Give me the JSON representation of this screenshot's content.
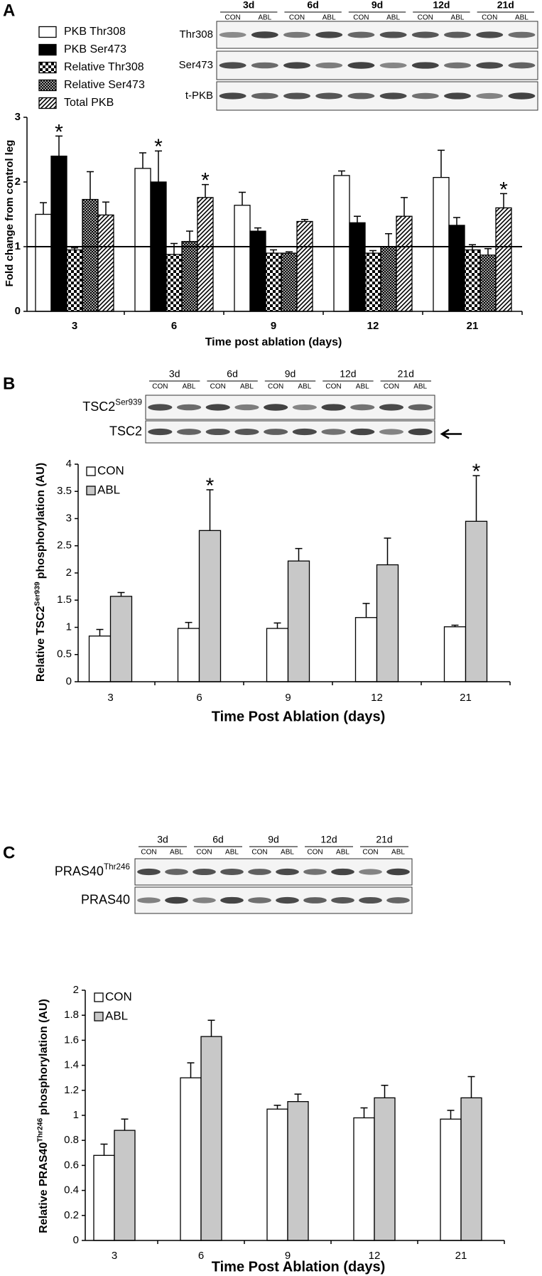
{
  "chart_data": [
    {
      "type": "bar",
      "panel": "A",
      "blot": {
        "days": [
          "3d",
          "6d",
          "9d",
          "12d",
          "21d"
        ],
        "conditions": [
          "CON",
          "ABL"
        ],
        "rows": [
          {
            "label": "Thr308"
          },
          {
            "label": "Ser473"
          },
          {
            "label": "t-PKB"
          }
        ]
      },
      "y_label": {
        "text": "Fold change from control leg"
      },
      "x_label": "Time post ablation (days)",
      "categories": [
        "3",
        "6",
        "9",
        "12",
        "21"
      ],
      "ylim": [
        0,
        3
      ],
      "yticks": [
        0,
        1,
        2,
        3
      ],
      "reference_line": 1,
      "series": [
        {
          "name": "PKB Thr308",
          "color": "#ffffff",
          "pattern": "solid",
          "values": [
            1.5,
            2.21,
            1.64,
            2.1,
            2.07
          ],
          "errors": [
            0.18,
            0.24,
            0.2,
            0.07,
            0.42
          ],
          "markers": [
            null,
            null,
            null,
            null,
            null
          ]
        },
        {
          "name": "PKB Ser473",
          "color": "#000000",
          "pattern": "solid",
          "values": [
            2.4,
            2.0,
            1.24,
            1.37,
            1.33
          ],
          "errors": [
            0.31,
            0.48,
            0.05,
            0.1,
            0.12
          ],
          "markers": [
            "*",
            "*",
            null,
            null,
            null
          ]
        },
        {
          "name": "Relative Thr308",
          "color": "#000000",
          "pattern": "checker",
          "values": [
            0.95,
            0.88,
            0.9,
            0.9,
            0.95
          ],
          "errors": [
            0.03,
            0.17,
            0.05,
            0.04,
            0.08
          ],
          "markers": [
            null,
            null,
            null,
            null,
            null
          ]
        },
        {
          "name": "Relative Ser473",
          "color": "#000000",
          "pattern": "crosshatch",
          "values": [
            1.73,
            1.08,
            0.9,
            1.0,
            0.87
          ],
          "errors": [
            0.43,
            0.16,
            0.02,
            0.2,
            0.1
          ],
          "markers": [
            null,
            null,
            null,
            null,
            null
          ]
        },
        {
          "name": "Total PKB",
          "color": "#000000",
          "pattern": "hatch",
          "values": [
            1.49,
            1.76,
            1.39,
            1.47,
            1.6
          ],
          "errors": [
            0.2,
            0.2,
            0.03,
            0.29,
            0.22
          ],
          "markers": [
            null,
            "*",
            null,
            null,
            "*"
          ]
        }
      ]
    },
    {
      "type": "bar",
      "panel": "B",
      "blot": {
        "days": [
          "3d",
          "6d",
          "9d",
          "12d",
          "21d"
        ],
        "conditions": [
          "CON",
          "ABL"
        ],
        "rows": [
          {
            "label": "TSC2",
            "sup": "Ser939"
          },
          {
            "label": "TSC2"
          }
        ]
      },
      "y_label": {
        "text": "Relative TSC2",
        "sup": "Ser939",
        "rest": "phosphorylation (AU)"
      },
      "x_label": "Time Post Ablation (days)",
      "categories": [
        "3",
        "6",
        "9",
        "12",
        "21"
      ],
      "ylim": [
        0,
        4
      ],
      "yticks": [
        0,
        0.5,
        1,
        1.5,
        2,
        2.5,
        3,
        3.5,
        4
      ],
      "series": [
        {
          "name": "CON",
          "color": "#ffffff",
          "pattern": "solid",
          "values": [
            0.84,
            0.98,
            0.98,
            1.18,
            1.01
          ],
          "errors": [
            0.12,
            0.11,
            0.1,
            0.26,
            0.03
          ],
          "markers": [
            null,
            null,
            null,
            null,
            null
          ]
        },
        {
          "name": "ABL",
          "color": "#c8c8c8",
          "pattern": "solid",
          "values": [
            1.57,
            2.78,
            2.22,
            2.15,
            2.95
          ],
          "errors": [
            0.07,
            0.75,
            0.23,
            0.49,
            0.84
          ],
          "markers": [
            null,
            "*",
            null,
            null,
            "*"
          ]
        }
      ]
    },
    {
      "type": "bar",
      "panel": "C",
      "blot": {
        "days": [
          "3d",
          "6d",
          "9d",
          "12d",
          "21d"
        ],
        "conditions": [
          "CON",
          "ABL"
        ],
        "rows": [
          {
            "label": "PRAS40",
            "sup": "Thr246"
          },
          {
            "label": "PRAS40"
          }
        ]
      },
      "y_label": {
        "text": "Relative PRAS40",
        "sup": "Thr246",
        "rest": "phosphorylation (AU)"
      },
      "x_label": "Time Post Ablation (days)",
      "categories": [
        "3",
        "6",
        "9",
        "12",
        "21"
      ],
      "ylim": [
        0,
        2
      ],
      "yticks": [
        0,
        0.2,
        0.4,
        0.6,
        0.8,
        1,
        1.2,
        1.4,
        1.6,
        1.8,
        2
      ],
      "series": [
        {
          "name": "CON",
          "color": "#ffffff",
          "pattern": "solid",
          "values": [
            0.68,
            1.3,
            1.05,
            0.98,
            0.97
          ],
          "errors": [
            0.09,
            0.12,
            0.03,
            0.08,
            0.07
          ],
          "markers": [
            null,
            null,
            null,
            null,
            null
          ]
        },
        {
          "name": "ABL",
          "color": "#c8c8c8",
          "pattern": "solid",
          "values": [
            0.88,
            1.63,
            1.11,
            1.14,
            1.14
          ],
          "errors": [
            0.09,
            0.13,
            0.06,
            0.1,
            0.17
          ],
          "markers": [
            null,
            null,
            null,
            null,
            null
          ]
        }
      ]
    }
  ]
}
